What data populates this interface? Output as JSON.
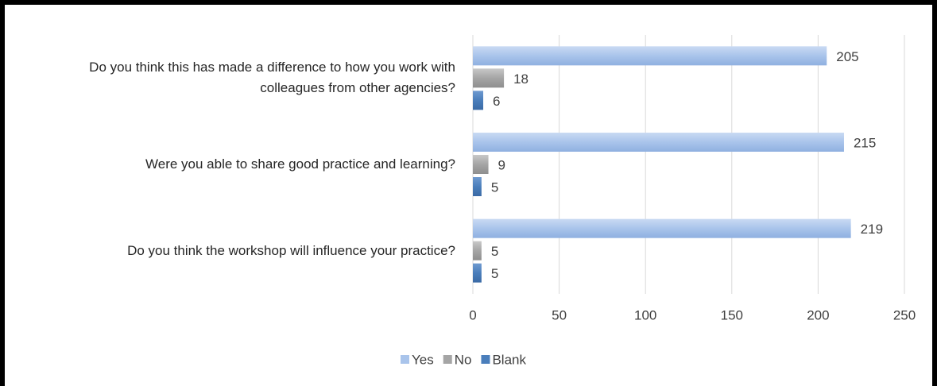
{
  "chart_data": {
    "type": "bar",
    "orientation": "horizontal",
    "categories": [
      "Do you think this has made a difference to how you work with colleagues from other agencies?",
      "Were you able to share good practice and learning?",
      "Do you think the workshop will influence your practice?"
    ],
    "series": [
      {
        "name": "Yes",
        "color": "#a9c4eb",
        "values": [
          205,
          215,
          219
        ]
      },
      {
        "name": "No",
        "color": "#a5a5a5",
        "values": [
          18,
          9,
          5
        ]
      },
      {
        "name": "Blank",
        "color": "#4a7ebb",
        "values": [
          6,
          5,
          5
        ]
      }
    ],
    "xlim": [
      0,
      250
    ],
    "xticks": [
      0,
      50,
      100,
      150,
      200,
      250
    ],
    "grid": true,
    "legend": "bottom"
  }
}
